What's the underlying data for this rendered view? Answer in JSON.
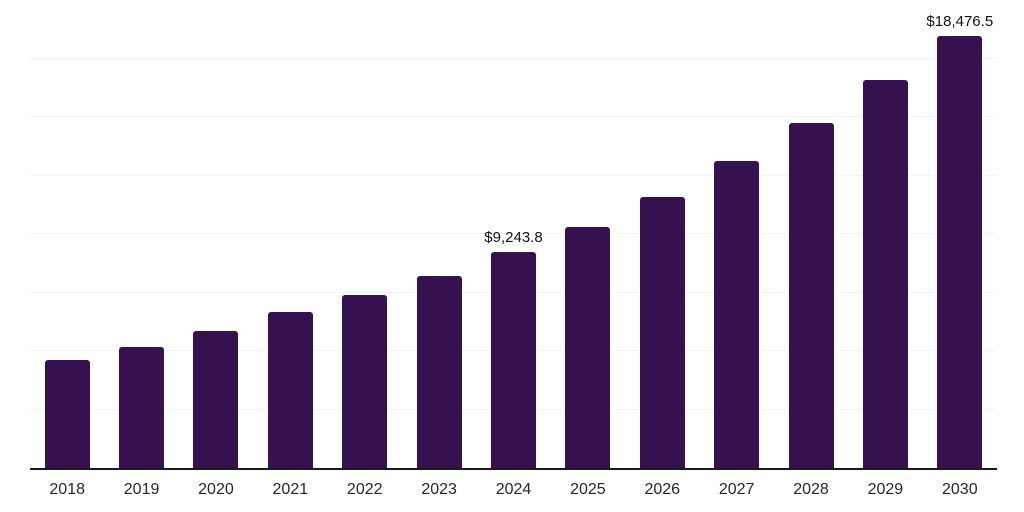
{
  "chart_data": {
    "type": "bar",
    "title": "",
    "xlabel": "",
    "ylabel": "",
    "categories": [
      "2018",
      "2019",
      "2020",
      "2021",
      "2022",
      "2023",
      "2024",
      "2025",
      "2026",
      "2027",
      "2028",
      "2029",
      "2030"
    ],
    "values": [
      4630,
      5185,
      5865,
      6675,
      7400,
      8210,
      9243.8,
      10310,
      11585,
      13120,
      14740,
      16575,
      18476.5
    ],
    "data_labels": {
      "2024": "$9,243.8",
      "2030": "$18,476.5"
    },
    "ylim": [
      0,
      20000
    ],
    "grid_step": 2500,
    "grid": true,
    "legend": false,
    "colors": {
      "bar": "#36114F",
      "gridline": "#F3F3F6",
      "axis": "#1A1A1A",
      "tick_label": "#262626",
      "data_label": "#111111",
      "background": "#FFFFFF"
    }
  }
}
